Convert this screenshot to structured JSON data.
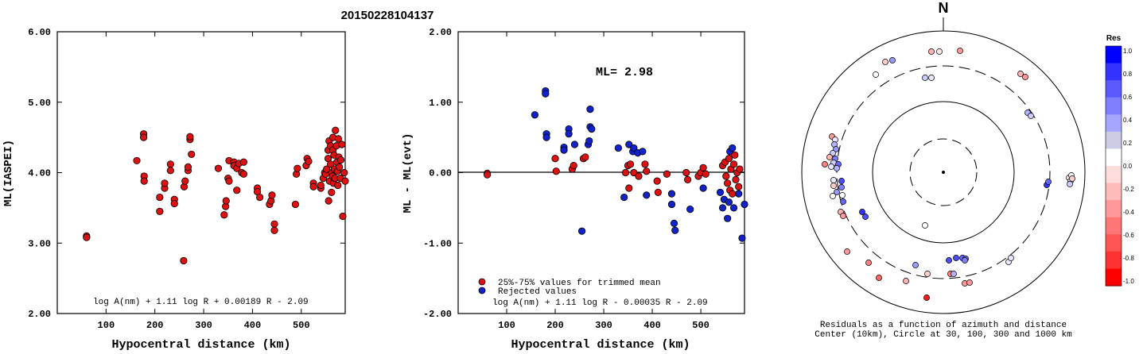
{
  "title": "20150228104137",
  "chart_data": [
    {
      "type": "scatter",
      "xlabel": "Hypocentral distance (km)",
      "ylabel": "ML(IASPEI)",
      "xlim": [
        0,
        590
      ],
      "ylim": [
        2.0,
        6.0
      ],
      "xticks": [
        "100",
        "200",
        "300",
        "400",
        "500"
      ],
      "yticks": [
        "2.00",
        "3.00",
        "4.00",
        "5.00",
        "6.00"
      ],
      "formula": "log A(nm) + 1.11 log R + 0.00189 R - 2.09",
      "point_color": "#dd1111",
      "points": [
        [
          60,
          3.1
        ],
        [
          60,
          3.08
        ],
        [
          163,
          4.17
        ],
        [
          177,
          4.55
        ],
        [
          177,
          4.5
        ],
        [
          178,
          3.95
        ],
        [
          178,
          3.88
        ],
        [
          210,
          3.45
        ],
        [
          210,
          3.65
        ],
        [
          220,
          3.78
        ],
        [
          220,
          3.85
        ],
        [
          232,
          4.12
        ],
        [
          232,
          4.03
        ],
        [
          240,
          3.62
        ],
        [
          240,
          3.56
        ],
        [
          259,
          2.75
        ],
        [
          260,
          3.8
        ],
        [
          262,
          3.88
        ],
        [
          268,
          4.03
        ],
        [
          268,
          4.08
        ],
        [
          272,
          4.47
        ],
        [
          272,
          4.51
        ],
        [
          275,
          4.26
        ],
        [
          330,
          4.06
        ],
        [
          342,
          3.4
        ],
        [
          345,
          3.52
        ],
        [
          346,
          3.6
        ],
        [
          350,
          3.92
        ],
        [
          352,
          3.88
        ],
        [
          352,
          4.17
        ],
        [
          362,
          4.15
        ],
        [
          362,
          4.1
        ],
        [
          368,
          4.06
        ],
        [
          368,
          3.75
        ],
        [
          372,
          4.13
        ],
        [
          378,
          4.0
        ],
        [
          382,
          4.15
        ],
        [
          382,
          3.98
        ],
        [
          410,
          3.78
        ],
        [
          410,
          3.73
        ],
        [
          415,
          3.65
        ],
        [
          435,
          3.55
        ],
        [
          438,
          3.6
        ],
        [
          440,
          3.68
        ],
        [
          445,
          3.27
        ],
        [
          445,
          3.18
        ],
        [
          488,
          3.55
        ],
        [
          490,
          3.98
        ],
        [
          492,
          4.06
        ],
        [
          510,
          4.1
        ],
        [
          512,
          4.2
        ],
        [
          515,
          4.16
        ],
        [
          525,
          3.85
        ],
        [
          525,
          3.8
        ],
        [
          540,
          3.78
        ],
        [
          540,
          3.82
        ],
        [
          545,
          3.92
        ],
        [
          548,
          4.0
        ],
        [
          550,
          3.98
        ],
        [
          552,
          4.05
        ],
        [
          555,
          4.2
        ],
        [
          555,
          4.32
        ],
        [
          556,
          3.6
        ],
        [
          557,
          4.45
        ],
        [
          558,
          3.88
        ],
        [
          560,
          4.12
        ],
        [
          560,
          4.38
        ],
        [
          562,
          3.72
        ],
        [
          563,
          4.0
        ],
        [
          564,
          3.95
        ],
        [
          565,
          4.5
        ],
        [
          565,
          4.32
        ],
        [
          566,
          3.85
        ],
        [
          567,
          4.25
        ],
        [
          568,
          4.05
        ],
        [
          569,
          3.92
        ],
        [
          570,
          4.6
        ],
        [
          572,
          4.38
        ],
        [
          573,
          4.15
        ],
        [
          574,
          4.02
        ],
        [
          575,
          3.82
        ],
        [
          576,
          4.48
        ],
        [
          577,
          4.22
        ],
        [
          578,
          4.08
        ],
        [
          580,
          3.92
        ],
        [
          581,
          4.18
        ],
        [
          583,
          4.4
        ],
        [
          585,
          3.38
        ],
        [
          588,
          4.0
        ],
        [
          590,
          3.88
        ]
      ]
    },
    {
      "type": "scatter",
      "xlabel": "Hypocentral distance (km)",
      "ylabel": "ML - ML(evt)",
      "xlim": [
        0,
        590
      ],
      "ylim": [
        -2.0,
        2.0
      ],
      "xticks": [
        "100",
        "200",
        "300",
        "400",
        "500"
      ],
      "yticks": [
        "-2.00",
        "-1.00",
        "0.00",
        "1.00",
        "2.00"
      ],
      "annotation": "ML= 2.98",
      "formula": "log A(nm) + 1.11 log R - 0.00035 R - 2.09",
      "legend": [
        "25%-75% values for trimmed mean",
        "Rejected values"
      ],
      "legend_colors": [
        "#dd1111",
        "#1122cc"
      ],
      "inliers": [
        [
          60,
          -0.01
        ],
        [
          60,
          -0.03
        ],
        [
          200,
          0.2
        ],
        [
          202,
          0.02
        ],
        [
          235,
          0.05
        ],
        [
          238,
          0.1
        ],
        [
          258,
          0.2
        ],
        [
          262,
          0.22
        ],
        [
          345,
          0.0
        ],
        [
          350,
          0.1
        ],
        [
          352,
          -0.22
        ],
        [
          355,
          0.12
        ],
        [
          362,
          0.0
        ],
        [
          372,
          -0.05
        ],
        [
          385,
          0.12
        ],
        [
          388,
          0.02
        ],
        [
          410,
          -0.12
        ],
        [
          412,
          -0.28
        ],
        [
          430,
          -0.02
        ],
        [
          470,
          0.0
        ],
        [
          473,
          -0.1
        ],
        [
          495,
          -0.05
        ],
        [
          500,
          0.0
        ],
        [
          505,
          0.07
        ],
        [
          510,
          -0.02
        ],
        [
          545,
          0.1
        ],
        [
          550,
          0.15
        ],
        [
          552,
          -0.05
        ],
        [
          555,
          -0.15
        ],
        [
          558,
          0.2
        ],
        [
          560,
          -0.25
        ],
        [
          562,
          0.05
        ],
        [
          565,
          -0.3
        ],
        [
          568,
          0.12
        ],
        [
          570,
          0.25
        ],
        [
          572,
          -0.1
        ],
        [
          575,
          0.0
        ],
        [
          578,
          -0.2
        ],
        [
          580,
          0.05
        ]
      ],
      "rejected": [
        [
          158,
          0.82
        ],
        [
          180,
          1.16
        ],
        [
          180,
          1.12
        ],
        [
          182,
          0.55
        ],
        [
          182,
          0.5
        ],
        [
          218,
          0.36
        ],
        [
          218,
          0.32
        ],
        [
          228,
          0.62
        ],
        [
          228,
          0.55
        ],
        [
          240,
          0.4
        ],
        [
          255,
          -0.83
        ],
        [
          268,
          0.4
        ],
        [
          270,
          0.45
        ],
        [
          272,
          0.9
        ],
        [
          272,
          0.65
        ],
        [
          275,
          0.62
        ],
        [
          330,
          0.35
        ],
        [
          342,
          -0.35
        ],
        [
          352,
          0.4
        ],
        [
          360,
          0.3
        ],
        [
          362,
          0.35
        ],
        [
          370,
          0.28
        ],
        [
          380,
          0.3
        ],
        [
          388,
          -0.32
        ],
        [
          440,
          -0.3
        ],
        [
          445,
          -0.72
        ],
        [
          447,
          -0.82
        ],
        [
          440,
          -0.45
        ],
        [
          478,
          -0.52
        ],
        [
          505,
          -0.22
        ],
        [
          540,
          -0.28
        ],
        [
          545,
          -0.5
        ],
        [
          548,
          -0.38
        ],
        [
          555,
          -0.65
        ],
        [
          558,
          -0.42
        ],
        [
          560,
          0.3
        ],
        [
          565,
          0.35
        ],
        [
          568,
          -0.5
        ],
        [
          578,
          -0.3
        ],
        [
          585,
          -0.93
        ],
        [
          590,
          -0.45
        ]
      ]
    },
    {
      "type": "scatter",
      "subtype": "polar",
      "north_label": "N",
      "caption": [
        "Residuals as a function of azimuth and distance",
        "Center (10km), Circle at 30, 100, 300 and 1000 km"
      ],
      "colorbar": {
        "title": "Res",
        "ticks": [
          "1.0",
          "0.8",
          "0.6",
          "0.4",
          "0.2",
          "0.0",
          "-0.2",
          "-0.4",
          "-0.6",
          "-0.8",
          "-1.0"
        ],
        "colors": [
          "#0000ff",
          "#3333ff",
          "#5a5aff",
          "#8080ff",
          "#a6a6ff",
          "#cccce6",
          "#ffffff",
          "#ffdcdc",
          "#ffbaba",
          "#ff9898",
          "#ff7676",
          "#ff5454",
          "#ff3232",
          "#ff0000"
        ]
      },
      "points_az_res": [
        [
          0.0,
          0.15
        ],
        [
          -0.4,
          0.2
        ],
        [
          0.0,
          -0.5
        ],
        [
          0.2,
          0.0
        ],
        [
          -0.1,
          0.3
        ],
        [
          -0.9,
          -0.2
        ],
        [
          -0.6,
          -0.3
        ]
      ]
    }
  ]
}
